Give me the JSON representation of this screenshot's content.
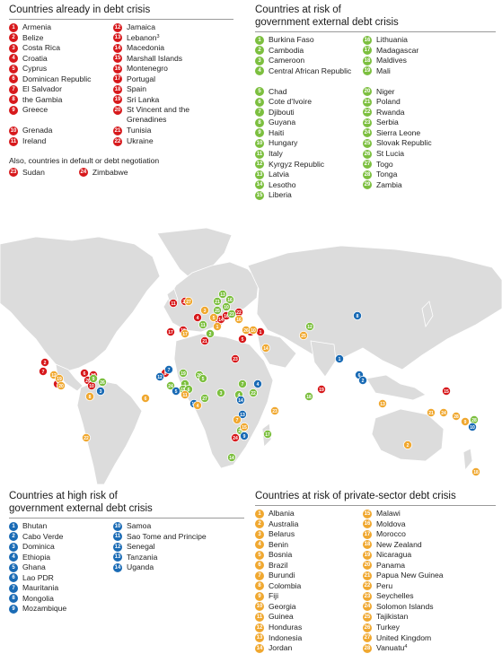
{
  "colors": {
    "red": "#d7191c",
    "green": "#7cbf3f",
    "blue": "#1a6bb5",
    "orange": "#f0a830",
    "land": "#dcdcdc"
  },
  "crisis": {
    "title": "Countries already in debt crisis",
    "items": [
      {
        "n": "1",
        "label": "Armenia"
      },
      {
        "n": "2",
        "label": "Belize"
      },
      {
        "n": "3",
        "label": "Costa Rica"
      },
      {
        "n": "4",
        "label": "Croatia"
      },
      {
        "n": "5",
        "label": "Cyprus"
      },
      {
        "n": "6",
        "label": "Dominican Republic"
      },
      {
        "n": "7",
        "label": "El Salvador"
      },
      {
        "n": "8",
        "label": "the Gambia"
      },
      {
        "n": "9",
        "label": "Greece"
      },
      {
        "n": "10",
        "label": "Grenada"
      },
      {
        "n": "11",
        "label": "Ireland"
      },
      {
        "n": "12",
        "label": "Jamaica"
      },
      {
        "n": "13",
        "label": "Lebanon",
        "sup": "3"
      },
      {
        "n": "14",
        "label": "Macedonia"
      },
      {
        "n": "15",
        "label": "Marshall Islands"
      },
      {
        "n": "16",
        "label": "Montenegro"
      },
      {
        "n": "17",
        "label": "Portugal"
      },
      {
        "n": "18",
        "label": "Spain"
      },
      {
        "n": "19",
        "label": "Sri Lanka"
      },
      {
        "n": "20",
        "label": "St Vincent and the Grenadines",
        "tall": true
      },
      {
        "n": "21",
        "label": "Tunisia"
      },
      {
        "n": "22",
        "label": "Ukraine"
      }
    ],
    "note": "Also, countries in default or debt negotiation",
    "note_items": [
      {
        "n": "23",
        "label": "Sudan"
      },
      {
        "n": "24",
        "label": "Zimbabwe"
      }
    ]
  },
  "gov_risk": {
    "title_line1": "Countries at risk of",
    "title_line2": "government external debt crisis",
    "items": [
      {
        "n": "1",
        "label": "Burkina Faso"
      },
      {
        "n": "2",
        "label": "Cambodia"
      },
      {
        "n": "3",
        "label": "Cameroon"
      },
      {
        "n": "4",
        "label": "Central African Republic",
        "tall": true
      },
      {
        "n": "5",
        "label": "Chad"
      },
      {
        "n": "6",
        "label": "Cote d'Ivoire"
      },
      {
        "n": "7",
        "label": "Djibouti"
      },
      {
        "n": "8",
        "label": "Guyana"
      },
      {
        "n": "9",
        "label": "Haiti"
      },
      {
        "n": "10",
        "label": "Hungary"
      },
      {
        "n": "11",
        "label": "Italy"
      },
      {
        "n": "12",
        "label": "Kyrgyz Republic"
      },
      {
        "n": "13",
        "label": "Latvia"
      },
      {
        "n": "14",
        "label": "Lesotho"
      },
      {
        "n": "15",
        "label": "Liberia"
      },
      {
        "n": "16",
        "label": "Lithuania"
      },
      {
        "n": "17",
        "label": "Madagascar"
      },
      {
        "n": "18",
        "label": "Maldives"
      },
      {
        "n": "19",
        "label": "Mali"
      },
      {
        "n": "20",
        "label": "Niger"
      },
      {
        "n": "21",
        "label": "Poland"
      },
      {
        "n": "22",
        "label": "Rwanda"
      },
      {
        "n": "23",
        "label": "Serbia"
      },
      {
        "n": "24",
        "label": "Sierra Leone"
      },
      {
        "n": "25",
        "label": "Slovak Republic"
      },
      {
        "n": "26",
        "label": "St Lucia"
      },
      {
        "n": "27",
        "label": "Togo"
      },
      {
        "n": "28",
        "label": "Tonga"
      },
      {
        "n": "29",
        "label": "Zambia"
      }
    ]
  },
  "high_risk": {
    "title_line1": "Countries at high risk of",
    "title_line2": "government external debt crisis",
    "items": [
      {
        "n": "1",
        "label": "Bhutan"
      },
      {
        "n": "2",
        "label": "Cabo Verde"
      },
      {
        "n": "3",
        "label": "Dominica"
      },
      {
        "n": "4",
        "label": "Ethiopia"
      },
      {
        "n": "5",
        "label": "Ghana"
      },
      {
        "n": "6",
        "label": "Lao PDR"
      },
      {
        "n": "7",
        "label": "Mauritania"
      },
      {
        "n": "8",
        "label": "Mongolia"
      },
      {
        "n": "9",
        "label": "Mozambique"
      },
      {
        "n": "10",
        "label": "Samoa"
      },
      {
        "n": "11",
        "label": "Sao Tome and Principe"
      },
      {
        "n": "12",
        "label": "Senegal"
      },
      {
        "n": "13",
        "label": "Tanzania"
      },
      {
        "n": "14",
        "label": "Uganda"
      }
    ]
  },
  "private_risk": {
    "title": "Countries at risk of private-sector debt crisis",
    "items": [
      {
        "n": "1",
        "label": "Albania"
      },
      {
        "n": "2",
        "label": "Australia"
      },
      {
        "n": "3",
        "label": "Belarus"
      },
      {
        "n": "4",
        "label": "Benin"
      },
      {
        "n": "5",
        "label": "Bosnia"
      },
      {
        "n": "6",
        "label": "Brazil"
      },
      {
        "n": "7",
        "label": "Burundi"
      },
      {
        "n": "8",
        "label": "Colombia"
      },
      {
        "n": "9",
        "label": "Fiji"
      },
      {
        "n": "10",
        "label": "Georgia"
      },
      {
        "n": "11",
        "label": "Guinea"
      },
      {
        "n": "12",
        "label": "Honduras"
      },
      {
        "n": "13",
        "label": "Indonesia"
      },
      {
        "n": "14",
        "label": "Jordan"
      },
      {
        "n": "15",
        "label": "Malawi"
      },
      {
        "n": "16",
        "label": "Moldova"
      },
      {
        "n": "17",
        "label": "Morocco"
      },
      {
        "n": "18",
        "label": "New Zealand"
      },
      {
        "n": "19",
        "label": "Nicaragua"
      },
      {
        "n": "20",
        "label": "Panama"
      },
      {
        "n": "21",
        "label": "Papua New Guinea"
      },
      {
        "n": "22",
        "label": "Peru"
      },
      {
        "n": "23",
        "label": "Seychelles"
      },
      {
        "n": "24",
        "label": "Solomon Islands"
      },
      {
        "n": "25",
        "label": "Tajikistan"
      },
      {
        "n": "26",
        "label": "Turkey"
      },
      {
        "n": "27",
        "label": "United Kingdom"
      },
      {
        "n": "28",
        "label": "Vanuatu",
        "sup": "4"
      }
    ]
  },
  "map_markers": [
    {
      "cat": "red",
      "n": "11"
    },
    {
      "cat": "red",
      "n": "27"
    },
    {
      "cat": "red",
      "n": "17"
    },
    {
      "cat": "red",
      "n": "18"
    },
    {
      "cat": "red",
      "n": "21"
    },
    {
      "cat": "red",
      "n": "9"
    },
    {
      "cat": "red",
      "n": "14"
    },
    {
      "cat": "red",
      "n": "16"
    },
    {
      "cat": "red",
      "n": "22"
    },
    {
      "cat": "red",
      "n": "5"
    },
    {
      "cat": "red",
      "n": "13"
    },
    {
      "cat": "red",
      "n": "1"
    },
    {
      "cat": "red",
      "n": "4"
    },
    {
      "cat": "red",
      "n": "19"
    },
    {
      "cat": "red",
      "n": "15"
    },
    {
      "cat": "red",
      "n": "23"
    },
    {
      "cat": "red",
      "n": "24"
    },
    {
      "cat": "red",
      "n": "2"
    },
    {
      "cat": "red",
      "n": "7"
    },
    {
      "cat": "red",
      "n": "3"
    },
    {
      "cat": "red",
      "n": "6"
    },
    {
      "cat": "red",
      "n": "12"
    },
    {
      "cat": "red",
      "n": "20"
    },
    {
      "cat": "red",
      "n": "10"
    },
    {
      "cat": "red",
      "n": "8"
    },
    {
      "cat": "green",
      "n": "16"
    },
    {
      "cat": "green",
      "n": "13"
    },
    {
      "cat": "green",
      "n": "21"
    },
    {
      "cat": "green",
      "n": "10"
    },
    {
      "cat": "green",
      "n": "25"
    },
    {
      "cat": "green",
      "n": "23"
    },
    {
      "cat": "green",
      "n": "11"
    },
    {
      "cat": "green",
      "n": "12"
    },
    {
      "cat": "green",
      "n": "2"
    },
    {
      "cat": "green",
      "n": "19"
    },
    {
      "cat": "green",
      "n": "20"
    },
    {
      "cat": "green",
      "n": "5"
    },
    {
      "cat": "green",
      "n": "1"
    },
    {
      "cat": "green",
      "n": "24"
    },
    {
      "cat": "green",
      "n": "15"
    },
    {
      "cat": "green",
      "n": "6"
    },
    {
      "cat": "green",
      "n": "27"
    },
    {
      "cat": "green",
      "n": "3"
    },
    {
      "cat": "green",
      "n": "4"
    },
    {
      "cat": "green",
      "n": "7"
    },
    {
      "cat": "green",
      "n": "22"
    },
    {
      "cat": "green",
      "n": "29"
    },
    {
      "cat": "green",
      "n": "14"
    },
    {
      "cat": "green",
      "n": "17"
    },
    {
      "cat": "green",
      "n": "18"
    },
    {
      "cat": "green",
      "n": "9"
    },
    {
      "cat": "green",
      "n": "26"
    },
    {
      "cat": "green",
      "n": "8"
    },
    {
      "cat": "green",
      "n": "28"
    },
    {
      "cat": "blue",
      "n": "8"
    },
    {
      "cat": "blue",
      "n": "1"
    },
    {
      "cat": "blue",
      "n": "6"
    },
    {
      "cat": "blue",
      "n": "2"
    },
    {
      "cat": "blue",
      "n": "7"
    },
    {
      "cat": "blue",
      "n": "12"
    },
    {
      "cat": "blue",
      "n": "5"
    },
    {
      "cat": "blue",
      "n": "11"
    },
    {
      "cat": "blue",
      "n": "4"
    },
    {
      "cat": "blue",
      "n": "14"
    },
    {
      "cat": "blue",
      "n": "13"
    },
    {
      "cat": "blue",
      "n": "9"
    },
    {
      "cat": "blue",
      "n": "3"
    },
    {
      "cat": "blue",
      "n": "10"
    },
    {
      "cat": "orange",
      "n": "3"
    },
    {
      "cat": "orange",
      "n": "27"
    },
    {
      "cat": "orange",
      "n": "16"
    },
    {
      "cat": "orange",
      "n": "5"
    },
    {
      "cat": "orange",
      "n": "1"
    },
    {
      "cat": "orange",
      "n": "26"
    },
    {
      "cat": "orange",
      "n": "10"
    },
    {
      "cat": "orange",
      "n": "25"
    },
    {
      "cat": "orange",
      "n": "14"
    },
    {
      "cat": "orange",
      "n": "17"
    },
    {
      "cat": "orange",
      "n": "12"
    },
    {
      "cat": "orange",
      "n": "19"
    },
    {
      "cat": "orange",
      "n": "20"
    },
    {
      "cat": "orange",
      "n": "8"
    },
    {
      "cat": "orange",
      "n": "22"
    },
    {
      "cat": "orange",
      "n": "6"
    },
    {
      "cat": "orange",
      "n": "11"
    },
    {
      "cat": "orange",
      "n": "4"
    },
    {
      "cat": "orange",
      "n": "15"
    },
    {
      "cat": "orange",
      "n": "7"
    },
    {
      "cat": "orange",
      "n": "23"
    },
    {
      "cat": "orange",
      "n": "13"
    },
    {
      "cat": "orange",
      "n": "21"
    },
    {
      "cat": "orange",
      "n": "24"
    },
    {
      "cat": "orange",
      "n": "28"
    },
    {
      "cat": "orange",
      "n": "9"
    },
    {
      "cat": "orange",
      "n": "2"
    },
    {
      "cat": "orange",
      "n": "18"
    }
  ]
}
